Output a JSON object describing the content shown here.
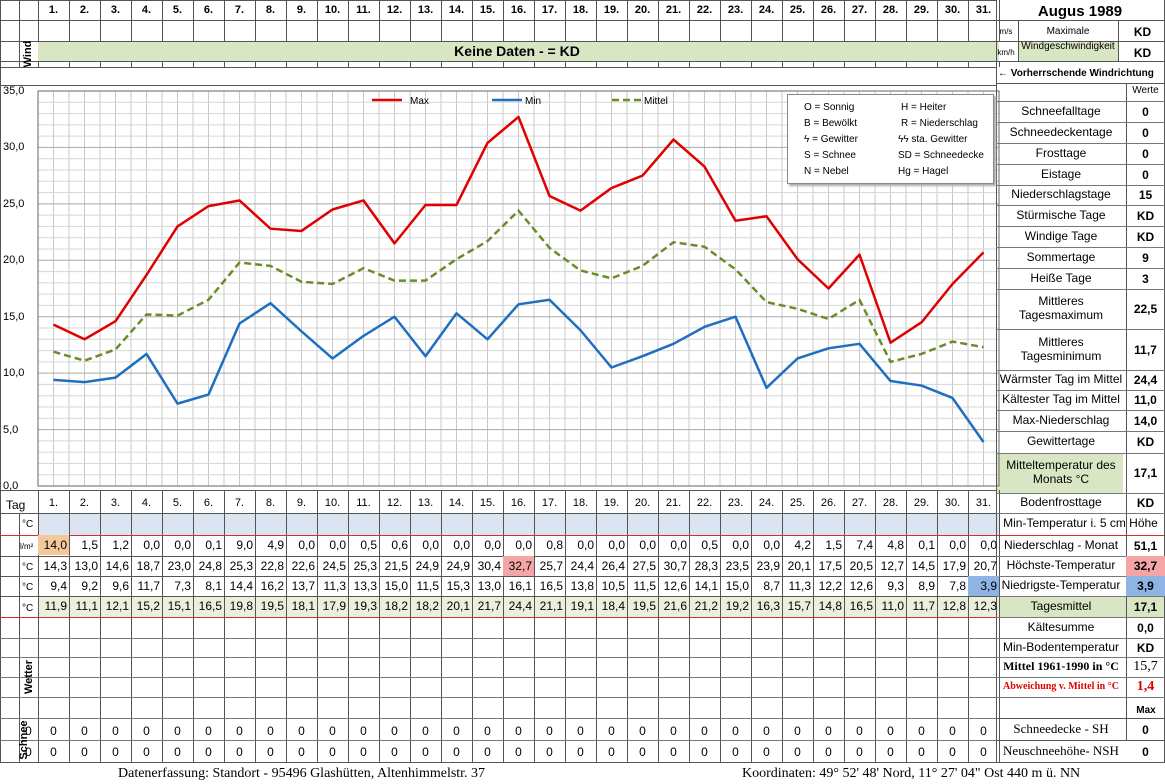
{
  "header": {
    "month_title": "Augus 1989",
    "days": [
      "1.",
      "2.",
      "3.",
      "4.",
      "5.",
      "6.",
      "7.",
      "8.",
      "9.",
      "10.",
      "11.",
      "12.",
      "13.",
      "14.",
      "15.",
      "16.",
      "17.",
      "18.",
      "19.",
      "20.",
      "21.",
      "22.",
      "23.",
      "24.",
      "25.",
      "26.",
      "27.",
      "28.",
      "29.",
      "30.",
      "31."
    ],
    "wind_label": "Wind",
    "unit_ms": "m/s",
    "unit_kmh": "km/h",
    "max_wind_label": "Maximale Windgeschwindigkeit",
    "max_wind_ms": "KD",
    "max_wind_kmh": "KD",
    "no_data_banner": "Keine Daten -  = KD",
    "wind_direction_label": "← Vorherrschende Windrichtung"
  },
  "legend_box": {
    "items": [
      "O = Sonnig",
      "H = Heiter",
      "B = Bewölkt",
      "R = Niederschlag",
      "ϟ = Gewitter",
      "ϟϟ sta. Gewitter",
      "S = Schnee",
      "SD = Schneedecke",
      "N = Nebel",
      "Hg = Hagel"
    ]
  },
  "chart_data": {
    "type": "line",
    "x": [
      "1.",
      "2.",
      "3.",
      "4.",
      "5.",
      "6.",
      "7.",
      "8.",
      "9.",
      "10.",
      "11.",
      "12.",
      "13.",
      "14.",
      "15.",
      "16.",
      "17.",
      "18.",
      "19.",
      "20.",
      "21.",
      "22.",
      "23.",
      "24.",
      "25.",
      "26.",
      "27.",
      "28.",
      "29.",
      "30.",
      "31."
    ],
    "ylim": [
      0,
      35
    ],
    "yticks": [
      "0,0",
      "5,0",
      "10,0",
      "15,0",
      "20,0",
      "25,0",
      "30,0",
      "35,0"
    ],
    "grid": true,
    "legend_position": "top",
    "series": [
      {
        "name": "Max",
        "color": "#e00000",
        "style": "solid",
        "values": [
          14.3,
          13.0,
          14.6,
          18.7,
          23.0,
          24.8,
          25.3,
          22.8,
          22.6,
          24.5,
          25.3,
          21.5,
          24.9,
          24.9,
          30.4,
          32.7,
          25.7,
          24.4,
          26.4,
          27.5,
          30.7,
          28.3,
          23.5,
          23.9,
          20.1,
          17.5,
          20.5,
          12.7,
          14.5,
          17.9,
          20.7
        ]
      },
      {
        "name": "Min",
        "color": "#1f6fc0",
        "style": "solid",
        "values": [
          9.4,
          9.2,
          9.6,
          11.7,
          7.3,
          8.1,
          14.4,
          16.2,
          13.7,
          11.3,
          13.3,
          15.0,
          11.5,
          15.3,
          13.0,
          16.1,
          16.5,
          13.8,
          10.5,
          11.5,
          12.6,
          14.1,
          15.0,
          8.7,
          11.3,
          12.2,
          12.6,
          9.3,
          8.9,
          7.8,
          3.9
        ]
      },
      {
        "name": "Mittel",
        "color": "#6b8c2a",
        "style": "dashed",
        "values": [
          11.9,
          11.1,
          12.1,
          15.2,
          15.1,
          16.5,
          19.8,
          19.5,
          18.1,
          17.9,
          19.3,
          18.2,
          18.2,
          20.1,
          21.7,
          24.4,
          21.1,
          19.1,
          18.4,
          19.5,
          21.6,
          21.2,
          19.2,
          16.3,
          15.7,
          14.8,
          16.5,
          11.0,
          11.7,
          12.8,
          12.3
        ]
      }
    ]
  },
  "table": {
    "tag_label": "Tag",
    "unit_c": "°C",
    "unit_lm2": "l/m²",
    "rows": {
      "precip": [
        "14,0",
        "1,5",
        "1,2",
        "0,0",
        "0,0",
        "0,1",
        "9,0",
        "4,9",
        "0,0",
        "0,0",
        "0,5",
        "0,6",
        "0,0",
        "0,0",
        "0,0",
        "0,0",
        "0,8",
        "0,0",
        "0,0",
        "0,0",
        "0,0",
        "0,5",
        "0,0",
        "0,0",
        "4,2",
        "1,5",
        "7,4",
        "4,8",
        "0,1",
        "0,0",
        "0,0"
      ],
      "max": [
        "14,3",
        "13,0",
        "14,6",
        "18,7",
        "23,0",
        "24,8",
        "25,3",
        "22,8",
        "22,6",
        "24,5",
        "25,3",
        "21,5",
        "24,9",
        "24,9",
        "30,4",
        "32,7",
        "25,7",
        "24,4",
        "26,4",
        "27,5",
        "30,7",
        "28,3",
        "23,5",
        "23,9",
        "20,1",
        "17,5",
        "20,5",
        "12,7",
        "14,5",
        "17,9",
        "20,7"
      ],
      "min": [
        "9,4",
        "9,2",
        "9,6",
        "11,7",
        "7,3",
        "8,1",
        "14,4",
        "16,2",
        "13,7",
        "11,3",
        "13,3",
        "15,0",
        "11,5",
        "15,3",
        "13,0",
        "16,1",
        "16,5",
        "13,8",
        "10,5",
        "11,5",
        "12,6",
        "14,1",
        "15,0",
        "8,7",
        "11,3",
        "12,2",
        "12,6",
        "9,3",
        "8,9",
        "7,8",
        "3,9"
      ],
      "mean": [
        "11,9",
        "11,1",
        "12,1",
        "15,2",
        "15,1",
        "16,5",
        "19,8",
        "19,5",
        "18,1",
        "17,9",
        "19,3",
        "18,2",
        "18,2",
        "20,1",
        "21,7",
        "24,4",
        "21,1",
        "19,1",
        "18,4",
        "19,5",
        "21,6",
        "21,2",
        "19,2",
        "16,3",
        "15,7",
        "14,8",
        "16,5",
        "11,0",
        "11,7",
        "12,8",
        "12,3"
      ]
    },
    "wetter_label": "Wetter",
    "schnee_label": "Schnee",
    "snow_sh": [
      "0",
      "0",
      "0",
      "0",
      "0",
      "0",
      "0",
      "0",
      "0",
      "0",
      "0",
      "0",
      "0",
      "0",
      "0",
      "0",
      "0",
      "0",
      "0",
      "0",
      "0",
      "0",
      "0",
      "0",
      "0",
      "0",
      "0",
      "0",
      "0",
      "0",
      "0"
    ],
    "snow_nsh": [
      "0",
      "0",
      "0",
      "0",
      "0",
      "0",
      "0",
      "0",
      "0",
      "0",
      "0",
      "0",
      "0",
      "0",
      "0",
      "0",
      "0",
      "0",
      "0",
      "0",
      "0",
      "0",
      "0",
      "0",
      "0",
      "0",
      "0",
      "0",
      "0",
      "0",
      "0"
    ]
  },
  "right_panel": {
    "werte_label": "Werte",
    "stats": [
      {
        "label": "Schneefalltage",
        "value": "0"
      },
      {
        "label": "Schneedeckentage",
        "value": "0"
      },
      {
        "label": "Frosttage",
        "value": "0"
      },
      {
        "label": "Eistage",
        "value": "0"
      },
      {
        "label": "Niederschlagstage",
        "value": "15"
      },
      {
        "label": "Stürmische Tage",
        "value": "KD"
      },
      {
        "label": "Windige Tage",
        "value": "KD"
      },
      {
        "label": "Sommertage",
        "value": "9"
      },
      {
        "label": "Heiße Tage",
        "value": "3"
      },
      {
        "label": "Mittleres Tagesmaximum",
        "value": "22,5"
      },
      {
        "label": "Mittleres Tagesminimum",
        "value": "11,7"
      },
      {
        "label": "Wärmster Tag im Mittel",
        "value": "24,4"
      },
      {
        "label": "Kältester Tag im Mittel",
        "value": "11,0"
      },
      {
        "label": "Max-Niederschlag",
        "value": "14,0"
      },
      {
        "label": "Gewittertage",
        "value": "KD"
      },
      {
        "label": "Mitteltemperatur des Monats °C",
        "value": "17,1"
      },
      {
        "label": "Bodenfrosttage",
        "value": "KD"
      }
    ],
    "min_temp_5cm_label": "Min-Temperatur i. 5 cm Höhe",
    "lower": [
      {
        "label": "Niederschlag - Monat",
        "value": "51,1"
      },
      {
        "label": "Höchste-Temperatur",
        "value": "32,7"
      },
      {
        "label": "Niedrigste-Temperatur",
        "value": "3,9"
      },
      {
        "label": "Tagesmittel",
        "value": "17,1"
      },
      {
        "label": "Kältesumme",
        "value": "0,0"
      },
      {
        "label": "Min-Bodentemperatur",
        "value": "KD"
      },
      {
        "label": "Mittel 1961-1990 in °C",
        "value": "15,7"
      },
      {
        "label": "Abweichung v. Mittel in °C",
        "value": "1,4"
      }
    ],
    "max_label": "Max",
    "snow_cover_label": "Schneedecke -   SH",
    "snow_cover_value": "0",
    "new_snow_label": "Neuschneehöhe- NSH",
    "new_snow_value": "0"
  },
  "footer": {
    "left": "Datenerfassung:  Standort -  95496  Glashütten, Altenhimmelstr. 37",
    "right": "Koordinaten:  49° 52' 48' Nord,  11° 27' 04\" Ost   440 m ü. NN"
  }
}
